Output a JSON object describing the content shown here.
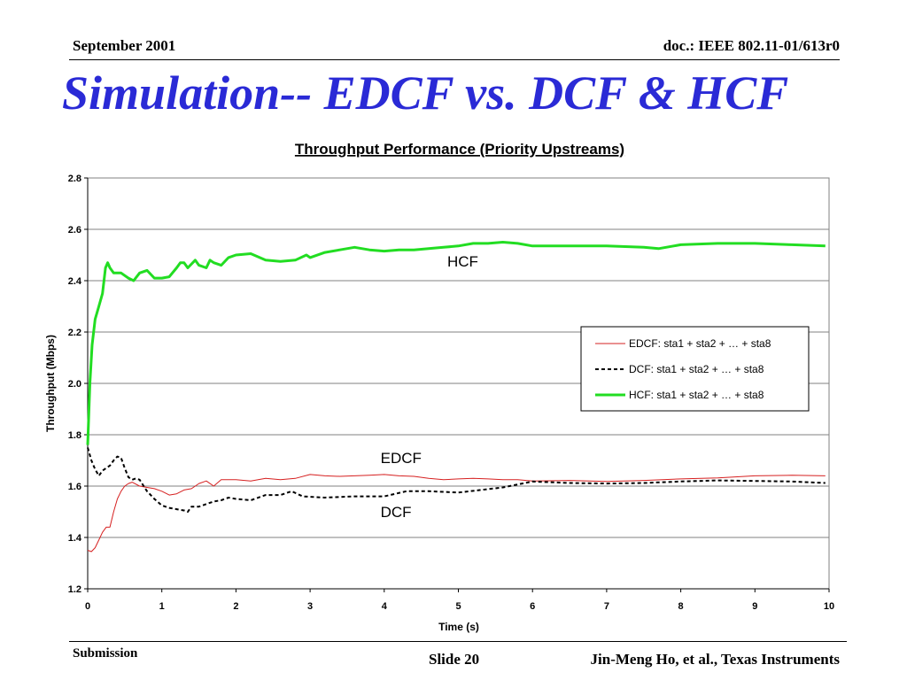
{
  "header": {
    "date": "September 2001",
    "doc_id": "doc.: IEEE 802.11-01/613r0"
  },
  "slide_title": "Simulation-- EDCF vs. DCF  & HCF",
  "footer": {
    "left": "Submission",
    "slide": "Slide 20",
    "author": "Jin-Meng Ho, et al., Texas Instruments"
  },
  "colors": {
    "title": "#2a2ad6",
    "edcf": "#d62020",
    "dcf": "#000000",
    "hcf": "#22dd22"
  },
  "chart_data": {
    "type": "line",
    "title": "Throughput Performance (Priority Upstreams)",
    "xlabel": "Time (s)",
    "ylabel": "Throughput (Mbps)",
    "xlim": [
      0,
      10
    ],
    "ylim": [
      1.2,
      2.8
    ],
    "xticks": [
      "0",
      "1",
      "2",
      "3",
      "4",
      "5",
      "6",
      "7",
      "8",
      "9",
      "10"
    ],
    "yticks": [
      "1.2",
      "1.4",
      "1.6",
      "1.8",
      "2.0",
      "2.2",
      "2.4",
      "2.6",
      "2.8"
    ],
    "grid": "horizontal",
    "legend_position": "right",
    "annotations": [
      {
        "text": "HCF",
        "x": 4.85,
        "y": 2.455
      },
      {
        "text": "EDCF",
        "x": 3.95,
        "y": 1.69
      },
      {
        "text": "DCF",
        "x": 3.95,
        "y": 1.48
      }
    ],
    "series": [
      {
        "name": "EDCF: sta1 + sta2 + … + sta8",
        "style": "solid",
        "points": [
          [
            0,
            1.35
          ],
          [
            0.05,
            1.345
          ],
          [
            0.1,
            1.36
          ],
          [
            0.15,
            1.39
          ],
          [
            0.2,
            1.42
          ],
          [
            0.25,
            1.44
          ],
          [
            0.3,
            1.44
          ],
          [
            0.35,
            1.5
          ],
          [
            0.4,
            1.55
          ],
          [
            0.45,
            1.58
          ],
          [
            0.5,
            1.6
          ],
          [
            0.55,
            1.61
          ],
          [
            0.6,
            1.615
          ],
          [
            0.7,
            1.6
          ],
          [
            0.8,
            1.595
          ],
          [
            0.9,
            1.59
          ],
          [
            1.0,
            1.58
          ],
          [
            1.1,
            1.565
          ],
          [
            1.2,
            1.57
          ],
          [
            1.3,
            1.585
          ],
          [
            1.4,
            1.59
          ],
          [
            1.5,
            1.61
          ],
          [
            1.6,
            1.62
          ],
          [
            1.7,
            1.6
          ],
          [
            1.8,
            1.625
          ],
          [
            2.0,
            1.625
          ],
          [
            2.2,
            1.62
          ],
          [
            2.4,
            1.63
          ],
          [
            2.6,
            1.625
          ],
          [
            2.8,
            1.63
          ],
          [
            3.0,
            1.645
          ],
          [
            3.2,
            1.64
          ],
          [
            3.4,
            1.638
          ],
          [
            3.6,
            1.64
          ],
          [
            3.8,
            1.642
          ],
          [
            4.0,
            1.645
          ],
          [
            4.2,
            1.64
          ],
          [
            4.4,
            1.638
          ],
          [
            4.6,
            1.63
          ],
          [
            4.8,
            1.625
          ],
          [
            5.0,
            1.628
          ],
          [
            5.2,
            1.63
          ],
          [
            5.4,
            1.628
          ],
          [
            5.6,
            1.625
          ],
          [
            5.8,
            1.625
          ],
          [
            6.0,
            1.62
          ],
          [
            6.5,
            1.622
          ],
          [
            7.0,
            1.618
          ],
          [
            7.5,
            1.622
          ],
          [
            8.0,
            1.628
          ],
          [
            8.5,
            1.632
          ],
          [
            9.0,
            1.64
          ],
          [
            9.5,
            1.642
          ],
          [
            9.95,
            1.64
          ]
        ]
      },
      {
        "name": "DCF: sta1 + sta2 + … + sta8",
        "style": "dashed",
        "points": [
          [
            0,
            1.75
          ],
          [
            0.05,
            1.7
          ],
          [
            0.1,
            1.665
          ],
          [
            0.15,
            1.64
          ],
          [
            0.2,
            1.66
          ],
          [
            0.25,
            1.67
          ],
          [
            0.3,
            1.68
          ],
          [
            0.35,
            1.7
          ],
          [
            0.4,
            1.715
          ],
          [
            0.45,
            1.71
          ],
          [
            0.5,
            1.67
          ],
          [
            0.55,
            1.635
          ],
          [
            0.6,
            1.625
          ],
          [
            0.65,
            1.63
          ],
          [
            0.7,
            1.625
          ],
          [
            0.8,
            1.58
          ],
          [
            0.9,
            1.55
          ],
          [
            1.0,
            1.525
          ],
          [
            1.1,
            1.515
          ],
          [
            1.2,
            1.51
          ],
          [
            1.3,
            1.505
          ],
          [
            1.35,
            1.5
          ],
          [
            1.4,
            1.52
          ],
          [
            1.5,
            1.52
          ],
          [
            1.6,
            1.53
          ],
          [
            1.7,
            1.54
          ],
          [
            1.8,
            1.545
          ],
          [
            1.9,
            1.555
          ],
          [
            2.0,
            1.55
          ],
          [
            2.2,
            1.545
          ],
          [
            2.4,
            1.565
          ],
          [
            2.6,
            1.565
          ],
          [
            2.75,
            1.58
          ],
          [
            2.9,
            1.56
          ],
          [
            3.2,
            1.555
          ],
          [
            3.6,
            1.56
          ],
          [
            4.0,
            1.56
          ],
          [
            4.3,
            1.58
          ],
          [
            4.6,
            1.58
          ],
          [
            5.0,
            1.575
          ],
          [
            5.3,
            1.585
          ],
          [
            5.6,
            1.595
          ],
          [
            6.0,
            1.618
          ],
          [
            6.5,
            1.612
          ],
          [
            7.0,
            1.61
          ],
          [
            7.5,
            1.612
          ],
          [
            8.0,
            1.618
          ],
          [
            8.5,
            1.622
          ],
          [
            9.0,
            1.62
          ],
          [
            9.5,
            1.618
          ],
          [
            9.95,
            1.612
          ]
        ]
      },
      {
        "name": "HCF: sta1 + sta2 + … + sta8",
        "style": "solid-thick",
        "points": [
          [
            0,
            1.76
          ],
          [
            0.03,
            2.0
          ],
          [
            0.06,
            2.15
          ],
          [
            0.1,
            2.25
          ],
          [
            0.15,
            2.3
          ],
          [
            0.2,
            2.35
          ],
          [
            0.24,
            2.45
          ],
          [
            0.27,
            2.47
          ],
          [
            0.3,
            2.45
          ],
          [
            0.35,
            2.43
          ],
          [
            0.45,
            2.43
          ],
          [
            0.55,
            2.41
          ],
          [
            0.62,
            2.4
          ],
          [
            0.7,
            2.43
          ],
          [
            0.8,
            2.44
          ],
          [
            0.9,
            2.41
          ],
          [
            1.0,
            2.41
          ],
          [
            1.1,
            2.415
          ],
          [
            1.2,
            2.45
          ],
          [
            1.25,
            2.47
          ],
          [
            1.3,
            2.47
          ],
          [
            1.35,
            2.45
          ],
          [
            1.45,
            2.48
          ],
          [
            1.5,
            2.46
          ],
          [
            1.6,
            2.45
          ],
          [
            1.65,
            2.48
          ],
          [
            1.7,
            2.47
          ],
          [
            1.8,
            2.46
          ],
          [
            1.9,
            2.49
          ],
          [
            2.0,
            2.5
          ],
          [
            2.2,
            2.505
          ],
          [
            2.4,
            2.48
          ],
          [
            2.6,
            2.475
          ],
          [
            2.8,
            2.48
          ],
          [
            2.95,
            2.5
          ],
          [
            3.0,
            2.49
          ],
          [
            3.2,
            2.51
          ],
          [
            3.4,
            2.52
          ],
          [
            3.6,
            2.53
          ],
          [
            3.8,
            2.52
          ],
          [
            4.0,
            2.515
          ],
          [
            4.2,
            2.52
          ],
          [
            4.4,
            2.52
          ],
          [
            4.6,
            2.525
          ],
          [
            4.8,
            2.53
          ],
          [
            5.0,
            2.535
          ],
          [
            5.2,
            2.545
          ],
          [
            5.4,
            2.545
          ],
          [
            5.6,
            2.55
          ],
          [
            5.8,
            2.545
          ],
          [
            6.0,
            2.535
          ],
          [
            6.5,
            2.535
          ],
          [
            7.0,
            2.535
          ],
          [
            7.5,
            2.53
          ],
          [
            7.7,
            2.525
          ],
          [
            8.0,
            2.54
          ],
          [
            8.5,
            2.545
          ],
          [
            9.0,
            2.545
          ],
          [
            9.5,
            2.54
          ],
          [
            9.95,
            2.535
          ]
        ]
      }
    ]
  }
}
